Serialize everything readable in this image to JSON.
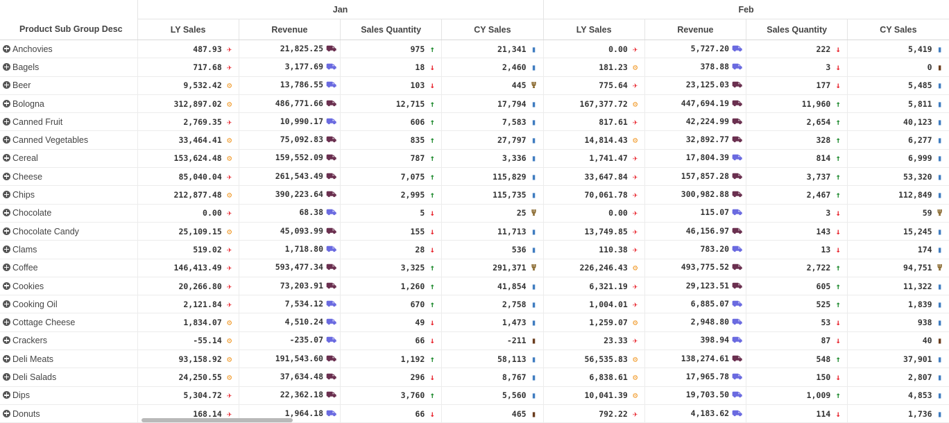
{
  "table": {
    "row_header_title": "Product Sub Group Desc",
    "months": [
      "Jan",
      "Feb"
    ],
    "measures": [
      "LY Sales",
      "Revenue",
      "Sales Quantity",
      "CY Sales"
    ],
    "rows": [
      {
        "name": "Anchovies",
        "cells": [
          [
            "487.93",
            "plane"
          ],
          [
            "21,825.25",
            "truck"
          ],
          [
            "975",
            "up"
          ],
          [
            "21,341",
            "book"
          ],
          [
            "0.00",
            "plane"
          ],
          [
            "5,727.20",
            "cart"
          ],
          [
            "222",
            "down"
          ],
          [
            "5,419",
            "book"
          ]
        ]
      },
      {
        "name": "Bagels",
        "cells": [
          [
            "717.68",
            "plane"
          ],
          [
            "3,177.69",
            "cart"
          ],
          [
            "18",
            "down"
          ],
          [
            "2,460",
            "book"
          ],
          [
            "181.23",
            "android"
          ],
          [
            "378.88",
            "cart"
          ],
          [
            "3",
            "down"
          ],
          [
            "0",
            "coffee"
          ]
        ]
      },
      {
        "name": "Beer",
        "cells": [
          [
            "9,532.42",
            "android"
          ],
          [
            "13,786.55",
            "cart"
          ],
          [
            "103",
            "down"
          ],
          [
            "445",
            "cut"
          ],
          [
            "775.64",
            "plane"
          ],
          [
            "23,125.03",
            "truck"
          ],
          [
            "177",
            "down"
          ],
          [
            "5,485",
            "book"
          ]
        ]
      },
      {
        "name": "Bologna",
        "cells": [
          [
            "312,897.02",
            "android"
          ],
          [
            "486,771.66",
            "truck"
          ],
          [
            "12,715",
            "up"
          ],
          [
            "17,794",
            "book"
          ],
          [
            "167,377.72",
            "android"
          ],
          [
            "447,694.19",
            "truck"
          ],
          [
            "11,960",
            "up"
          ],
          [
            "5,811",
            "book"
          ]
        ]
      },
      {
        "name": "Canned Fruit",
        "cells": [
          [
            "2,769.35",
            "plane"
          ],
          [
            "10,990.17",
            "cart"
          ],
          [
            "606",
            "up"
          ],
          [
            "7,583",
            "book"
          ],
          [
            "817.61",
            "plane"
          ],
          [
            "42,224.99",
            "truck"
          ],
          [
            "2,654",
            "up"
          ],
          [
            "40,123",
            "book"
          ]
        ]
      },
      {
        "name": "Canned Vegetables",
        "cells": [
          [
            "33,464.41",
            "android"
          ],
          [
            "75,092.83",
            "truck"
          ],
          [
            "835",
            "up"
          ],
          [
            "27,797",
            "book"
          ],
          [
            "14,814.43",
            "android"
          ],
          [
            "32,892.77",
            "truck"
          ],
          [
            "328",
            "up"
          ],
          [
            "6,277",
            "book"
          ]
        ]
      },
      {
        "name": "Cereal",
        "cells": [
          [
            "153,624.48",
            "android"
          ],
          [
            "159,552.09",
            "truck"
          ],
          [
            "787",
            "up"
          ],
          [
            "3,336",
            "book"
          ],
          [
            "1,741.47",
            "plane"
          ],
          [
            "17,804.39",
            "cart"
          ],
          [
            "814",
            "up"
          ],
          [
            "6,999",
            "book"
          ]
        ]
      },
      {
        "name": "Cheese",
        "cells": [
          [
            "85,040.04",
            "plane"
          ],
          [
            "261,543.49",
            "truck"
          ],
          [
            "7,075",
            "up"
          ],
          [
            "115,829",
            "book"
          ],
          [
            "33,647.84",
            "plane"
          ],
          [
            "157,857.28",
            "truck"
          ],
          [
            "3,737",
            "up"
          ],
          [
            "53,320",
            "book"
          ]
        ]
      },
      {
        "name": "Chips",
        "cells": [
          [
            "212,877.48",
            "android"
          ],
          [
            "390,223.64",
            "truck"
          ],
          [
            "2,995",
            "up"
          ],
          [
            "115,735",
            "book"
          ],
          [
            "70,061.78",
            "plane"
          ],
          [
            "300,982.88",
            "truck"
          ],
          [
            "2,467",
            "up"
          ],
          [
            "112,849",
            "book"
          ]
        ]
      },
      {
        "name": "Chocolate",
        "cells": [
          [
            "0.00",
            "plane"
          ],
          [
            "68.38",
            "cart"
          ],
          [
            "5",
            "down"
          ],
          [
            "25",
            "cut"
          ],
          [
            "0.00",
            "plane"
          ],
          [
            "115.07",
            "cart"
          ],
          [
            "3",
            "down"
          ],
          [
            "59",
            "cut"
          ]
        ]
      },
      {
        "name": "Chocolate Candy",
        "cells": [
          [
            "25,109.15",
            "android"
          ],
          [
            "45,093.99",
            "truck"
          ],
          [
            "155",
            "down"
          ],
          [
            "11,713",
            "book"
          ],
          [
            "13,749.85",
            "plane"
          ],
          [
            "46,156.97",
            "truck"
          ],
          [
            "143",
            "down"
          ],
          [
            "15,245",
            "book"
          ]
        ]
      },
      {
        "name": "Clams",
        "cells": [
          [
            "519.02",
            "plane"
          ],
          [
            "1,718.80",
            "cart"
          ],
          [
            "28",
            "down"
          ],
          [
            "536",
            "book"
          ],
          [
            "110.38",
            "plane"
          ],
          [
            "783.20",
            "cart"
          ],
          [
            "13",
            "down"
          ],
          [
            "174",
            "book"
          ]
        ]
      },
      {
        "name": "Coffee",
        "cells": [
          [
            "146,413.49",
            "plane"
          ],
          [
            "593,477.34",
            "truck"
          ],
          [
            "3,325",
            "up"
          ],
          [
            "291,371",
            "cut"
          ],
          [
            "226,246.43",
            "android"
          ],
          [
            "493,775.52",
            "truck"
          ],
          [
            "2,722",
            "up"
          ],
          [
            "94,751",
            "cut"
          ]
        ]
      },
      {
        "name": "Cookies",
        "cells": [
          [
            "20,266.80",
            "plane"
          ],
          [
            "73,203.91",
            "truck"
          ],
          [
            "1,260",
            "up"
          ],
          [
            "41,854",
            "book"
          ],
          [
            "6,321.19",
            "plane"
          ],
          [
            "29,123.51",
            "truck"
          ],
          [
            "605",
            "up"
          ],
          [
            "11,322",
            "book"
          ]
        ]
      },
      {
        "name": "Cooking Oil",
        "cells": [
          [
            "2,121.84",
            "plane"
          ],
          [
            "7,534.12",
            "cart"
          ],
          [
            "670",
            "up"
          ],
          [
            "2,758",
            "book"
          ],
          [
            "1,004.01",
            "plane"
          ],
          [
            "6,885.07",
            "cart"
          ],
          [
            "525",
            "up"
          ],
          [
            "1,839",
            "book"
          ]
        ]
      },
      {
        "name": "Cottage Cheese",
        "cells": [
          [
            "1,834.07",
            "android"
          ],
          [
            "4,510.24",
            "cart"
          ],
          [
            "49",
            "down"
          ],
          [
            "1,473",
            "book"
          ],
          [
            "1,259.07",
            "android"
          ],
          [
            "2,948.80",
            "cart"
          ],
          [
            "53",
            "down"
          ],
          [
            "938",
            "book"
          ]
        ]
      },
      {
        "name": "Crackers",
        "cells": [
          [
            "-55.14",
            "android"
          ],
          [
            "-235.07",
            "cart"
          ],
          [
            "66",
            "down"
          ],
          [
            "-211",
            "coffee"
          ],
          [
            "23.33",
            "plane"
          ],
          [
            "398.94",
            "cart"
          ],
          [
            "87",
            "down"
          ],
          [
            "40",
            "coffee"
          ]
        ]
      },
      {
        "name": "Deli Meats",
        "cells": [
          [
            "93,158.92",
            "android"
          ],
          [
            "191,543.60",
            "truck"
          ],
          [
            "1,192",
            "up"
          ],
          [
            "58,113",
            "book"
          ],
          [
            "56,535.83",
            "android"
          ],
          [
            "138,274.61",
            "truck"
          ],
          [
            "548",
            "up"
          ],
          [
            "37,901",
            "book"
          ]
        ]
      },
      {
        "name": "Deli Salads",
        "cells": [
          [
            "24,250.55",
            "android"
          ],
          [
            "37,634.48",
            "truck"
          ],
          [
            "296",
            "down"
          ],
          [
            "8,767",
            "book"
          ],
          [
            "6,838.61",
            "android"
          ],
          [
            "17,965.78",
            "cart"
          ],
          [
            "150",
            "down"
          ],
          [
            "2,807",
            "book"
          ]
        ]
      },
      {
        "name": "Dips",
        "cells": [
          [
            "5,304.72",
            "plane"
          ],
          [
            "22,362.18",
            "truck"
          ],
          [
            "3,760",
            "up"
          ],
          [
            "5,560",
            "book"
          ],
          [
            "10,041.39",
            "android"
          ],
          [
            "19,703.50",
            "cart"
          ],
          [
            "1,009",
            "up"
          ],
          [
            "4,853",
            "book"
          ]
        ]
      },
      {
        "name": "Donuts",
        "cells": [
          [
            "168.14",
            "plane"
          ],
          [
            "1,964.18",
            "cart"
          ],
          [
            "66",
            "down"
          ],
          [
            "465",
            "coffee"
          ],
          [
            "792.22",
            "plane"
          ],
          [
            "4,183.62",
            "cart"
          ],
          [
            "114",
            "down"
          ],
          [
            "1,736",
            "book"
          ]
        ]
      }
    ]
  },
  "icons": {
    "plane": {
      "glyph": "✈",
      "name": "plane-icon"
    },
    "android": {
      "glyph": "⚙",
      "name": "android-icon"
    },
    "cart": {
      "glyph": "⛟",
      "name": "cart-icon"
    },
    "truck": {
      "glyph": "⛟",
      "name": "truck-icon"
    },
    "up": {
      "glyph": "↑",
      "name": "arrow-up-icon"
    },
    "down": {
      "glyph": "↓",
      "name": "arrow-down-icon"
    },
    "book": {
      "glyph": "▮",
      "name": "book-icon"
    },
    "cut": {
      "glyph": "Ψ",
      "name": "cutlery-icon"
    },
    "coffee": {
      "glyph": "▮",
      "name": "coffee-icon"
    }
  }
}
